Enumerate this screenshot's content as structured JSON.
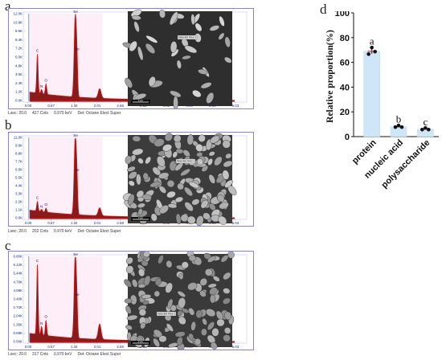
{
  "panels": [
    {
      "letter": "a",
      "y_ticks": [
        "12.0K",
        "10.8K",
        "9.6K",
        "8.4K",
        "7.2K",
        "6.0K",
        "4.8K",
        "3.6K",
        "2.4K",
        "1.2K",
        "0.0K"
      ],
      "x_ticks": [
        "0.00",
        "0.67",
        "1.34",
        "2.01",
        "2.68",
        "3.35",
        "4.02",
        "4.69",
        "5.36",
        "6.03"
      ],
      "peak_labels": [
        "C",
        "N",
        "O",
        "Se",
        "Se"
      ],
      "footer": {
        "lsec": "Lsec: 20.0",
        "cnts": "427 Cnts",
        "kev": "0.970 keV",
        "det": "Det: Octane Elect Super"
      },
      "sem_label": "Selected Area 1",
      "scale_label": "2 µm"
    },
    {
      "letter": "b",
      "y_ticks": [
        "11.0K",
        "9.9K",
        "8.8K",
        "7.7K",
        "6.6K",
        "5.5K",
        "4.4K",
        "3.3K",
        "2.2K",
        "1.1K",
        "0.0K"
      ],
      "x_ticks": [
        "0.00",
        "0.67",
        "1.34",
        "2.01",
        "2.68",
        "3.35",
        "4.02",
        "4.69",
        "5.36",
        "6.03"
      ],
      "peak_labels": [
        "C",
        "N",
        "O",
        "Se",
        "Se"
      ],
      "footer": {
        "lsec": "Lsec: 20.0",
        "cnts": "202 Cnts",
        "kev": "0.970 keV",
        "det": "Det: Octane Elect Super"
      },
      "sem_label": "Selected Area 1",
      "scale_label": "2 µm"
    },
    {
      "letter": "c",
      "y_ticks": [
        "6.80K",
        "6.12K",
        "5.44K",
        "4.76K",
        "4.08K",
        "3.40K",
        "2.72K",
        "2.04K",
        "1.36K",
        "0.68K",
        "0.00K"
      ],
      "x_ticks": [
        "0.00",
        "0.67",
        "1.34",
        "2.01",
        "2.68",
        "3.35",
        "4.02",
        "4.69",
        "5.36",
        "6.03"
      ],
      "peak_labels": [
        "C",
        "N",
        "O",
        "Se",
        "Se"
      ],
      "footer": {
        "lsec": "Lsec: 20.0",
        "cnts": "317 Cnts",
        "kev": "0.970 keV",
        "det": "Det: Octane Elect Super"
      },
      "sem_label": "Selected Area 1",
      "scale_label": "2 µm"
    }
  ],
  "chart_d": {
    "letter": "d",
    "chart_data": {
      "type": "bar",
      "categories": [
        "protein",
        "nucleic acid",
        "polysaccharide"
      ],
      "values": [
        69,
        8,
        6
      ],
      "points": [
        [
          67,
          71,
          69
        ],
        [
          8,
          8,
          8
        ],
        [
          6,
          6,
          6
        ]
      ],
      "significance": [
        "a",
        "b",
        "c"
      ],
      "ylabel": "Relative proportion(%)",
      "ylim": [
        0,
        100
      ],
      "yticks": [
        0,
        20,
        40,
        60,
        80,
        100
      ],
      "colors": {
        "bar": "#cfe6f7",
        "bar_edge": "#b8d7ef",
        "point": "#111111",
        "err": "#111111"
      }
    }
  }
}
